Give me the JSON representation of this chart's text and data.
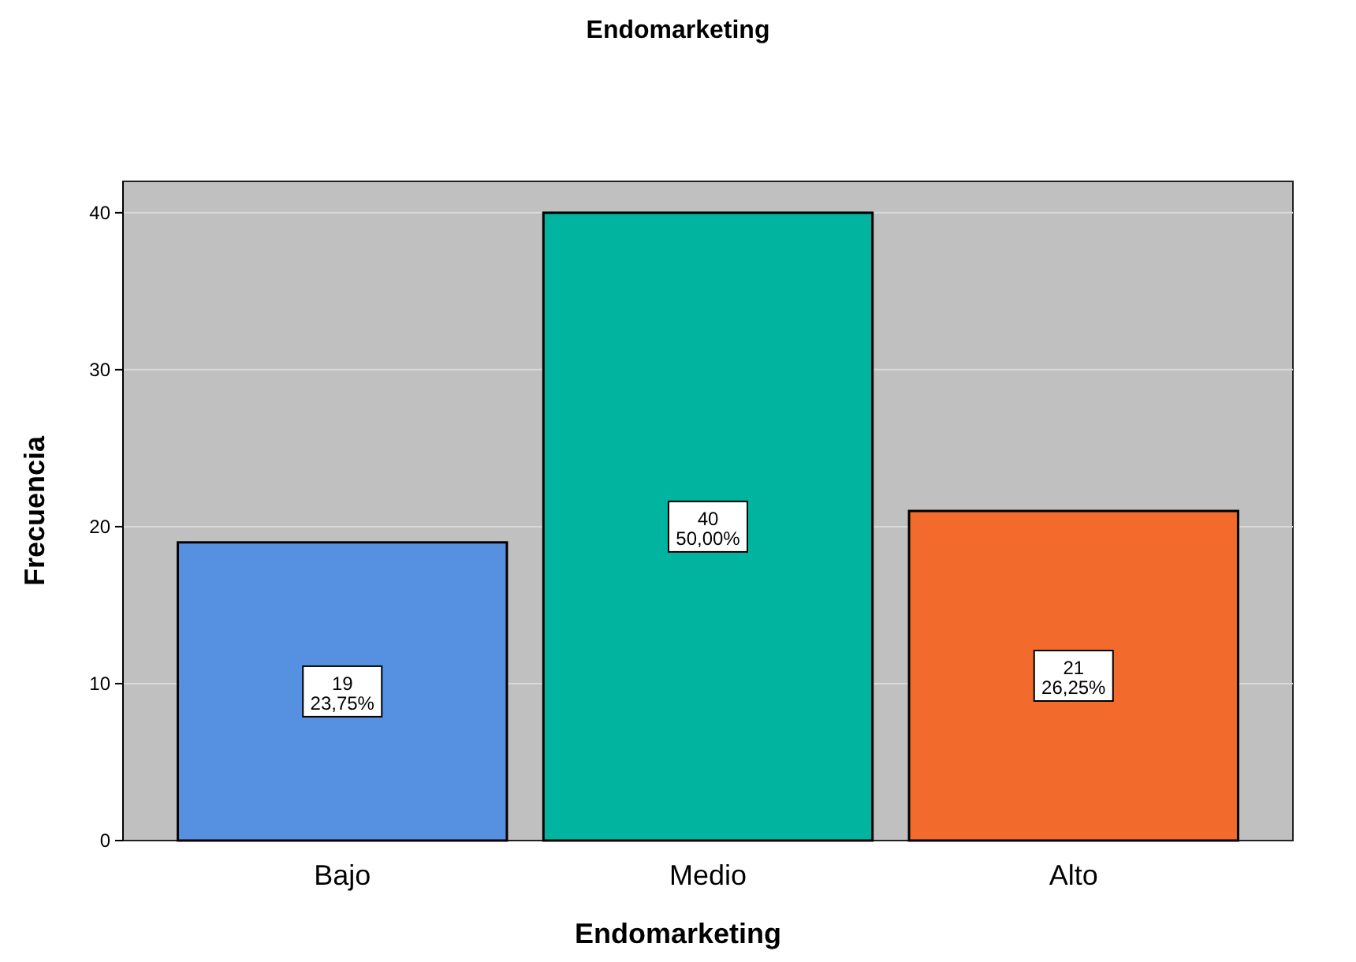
{
  "chart_data": {
    "type": "bar",
    "title": "Endomarketing",
    "xlabel": "Endomarketing",
    "ylabel": "Frecuencia",
    "categories": [
      "Bajo",
      "Medio",
      "Alto"
    ],
    "values": [
      19,
      40,
      21
    ],
    "colors": [
      "#5591e0",
      "#00b4a0",
      "#f26a2c"
    ],
    "value_labels": [
      "19\n23,75%",
      "40\n50,00%",
      "21\n26,25%"
    ],
    "ylim": [
      0,
      42
    ],
    "yticks": [
      0,
      10,
      20,
      30,
      40
    ],
    "grid": "y"
  }
}
